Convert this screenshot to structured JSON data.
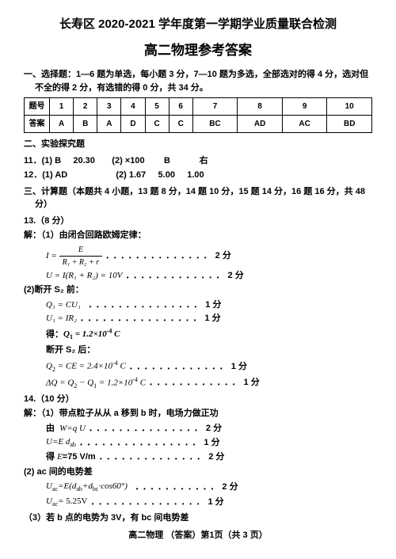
{
  "header": {
    "title1": "长寿区 2020-2021 学年度第一学期学业质量联合检测",
    "title2": "高二物理参考答案"
  },
  "section1": {
    "heading": "一、选择题：1—6 题为单选，每小题 3 分，7—10 题为多选，全部选对的得 4 分，选对但不全的得 2 分，有选错的得 0 分，共 34 分。",
    "row_label": "题号",
    "ans_label": "答案",
    "numbers": [
      "1",
      "2",
      "3",
      "4",
      "5",
      "6",
      "7",
      "8",
      "9",
      "10"
    ],
    "answers": [
      "A",
      "B",
      "A",
      "D",
      "C",
      "C",
      "BC",
      "AD",
      "AC",
      "BD"
    ]
  },
  "section2": {
    "heading": "二、实验探究题",
    "q11": {
      "label": "11．(1) B",
      "v1": "20.30",
      "v2": "(2) ×100",
      "v3": "B",
      "v4": "右"
    },
    "q12": {
      "label": "12．(1) AD",
      "v1": "(2) 1.67",
      "v2": "5.00",
      "v3": "1.00"
    }
  },
  "section3": {
    "heading": "三、计算题（本题共 4 小题，13 题 8 分，14 题 10 分，15 题 14 分，16 题 16 分，共 48 分）",
    "q13": {
      "label": "13.（8 分）",
      "l1": "解：（1）由闭合回路欧姆定律：",
      "formula_i": "I =",
      "frac_num": "E",
      "frac_den": "R₁ + R₂ + r",
      "pts1": "2 分",
      "l2": "U = I(R₁ + R₂) = 10V",
      "pts2": "2 分",
      "l3": "(2)断开 S₂ 前：",
      "l4": "Q₁ = CU₁",
      "pts3": "1 分",
      "l5": "U₁ = IR₂",
      "pts4": "1 分",
      "l6": "得：Q₁ = 1.2×10⁻⁴ C",
      "l7": "断开 S₂ 后：",
      "l8": "Q₂ = CE = 2.4×10⁻⁴ C",
      "pts5": "1 分",
      "l9": "ΔQ = Q₂ − Q₁ = 1.2×10⁻⁴ C",
      "pts6": "1 分"
    },
    "q14": {
      "label": "14.（10 分）",
      "l1": "解：（1）带点粒子从从 a 移到 b 时，电场力做正功",
      "l2": "由  W=q U",
      "pts1": "2 分",
      "l3": "U=E d_ab",
      "pts2": "1 分",
      "l4": "得 E=75 V/m",
      "pts3": "2 分",
      "l5": "(2) ac 间的电势差",
      "l6": "U_ac=E(d_ab+d_bc·cos60°)",
      "pts4": "2 分",
      "l7": "U_ac= 5.25V",
      "pts5": "1 分",
      "l8": "（3）若 b 点的电势为 3V，有 bc 间电势差"
    }
  },
  "footer": "高二物理 （答案）第1页（共 3 页）"
}
